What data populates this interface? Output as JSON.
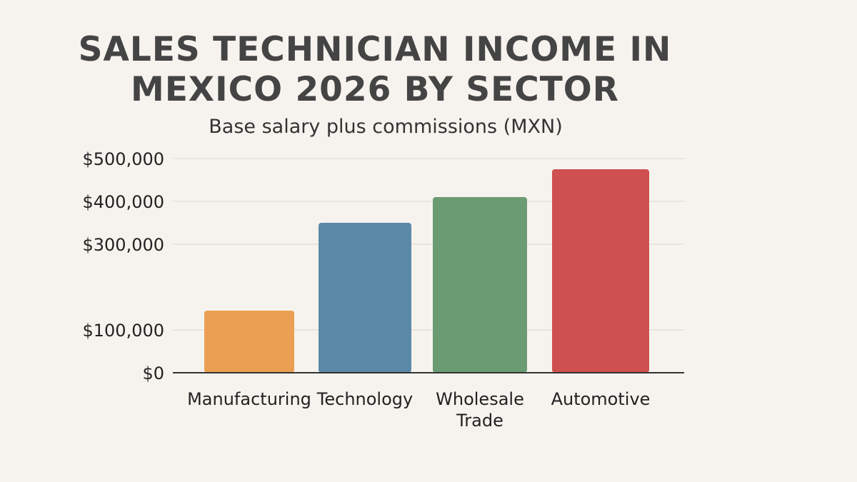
{
  "chart_data": {
    "type": "bar",
    "title_lines": [
      "SALES TECHNICIAN INCOME IN",
      "MEXICO 2026 BY SECTOR"
    ],
    "subtitle": "Base salary plus commissions (MXN)",
    "categories": [
      "Manufacturing",
      "Technology",
      "Wholesale Trade",
      "Automotive"
    ],
    "category_label_lines": [
      [
        "Manufacturing"
      ],
      [
        "Technology"
      ],
      [
        "Wholesale",
        "Trade"
      ],
      [
        "Automotive"
      ]
    ],
    "values": [
      145000,
      350000,
      410000,
      475000
    ],
    "colors": [
      "#eb9f52",
      "#5b89a8",
      "#6b9b72",
      "#cf5050"
    ],
    "y_ticks": [
      0,
      100000,
      300000,
      400000,
      500000
    ],
    "y_tick_labels": [
      "$0",
      "$100,000",
      "$300,000",
      "$400,000",
      "$500,000"
    ],
    "ylim": [
      0,
      500000
    ],
    "grid": true,
    "legend": "none"
  }
}
